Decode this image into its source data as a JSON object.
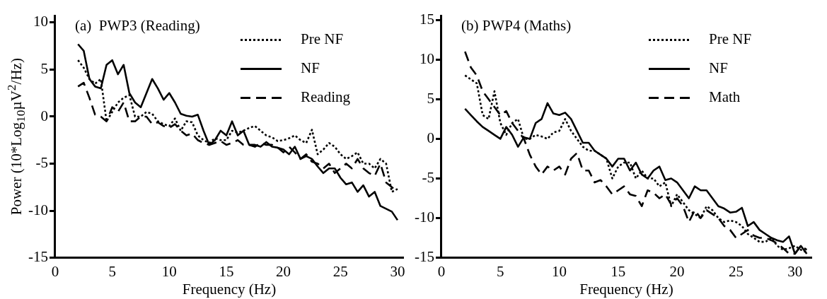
{
  "chart_data": [
    {
      "type": "line",
      "title": "(a)  PWP3 (Reading)",
      "xlabel": "Frequency (Hz)",
      "ylabel": "Power (10*Log$_{10}$µV$^{2}$/Hz)",
      "xlim": [
        0,
        30.5
      ],
      "xticks": [
        0,
        5,
        10,
        15,
        20,
        25,
        30
      ],
      "ylim": [
        -15,
        10.7
      ],
      "yticks": [
        -15,
        -10,
        -5,
        0,
        5,
        10
      ],
      "grid": false,
      "legend": "top right",
      "marker": "none",
      "x": [
        2,
        2.5,
        3,
        3.5,
        4,
        4.5,
        5,
        5.5,
        6,
        6.5,
        7,
        7.5,
        8,
        8.5,
        9,
        9.5,
        10,
        10.5,
        11,
        11.5,
        12,
        12.5,
        13,
        13.5,
        14,
        14.5,
        15,
        15.5,
        16,
        16.5,
        17,
        17.5,
        18,
        18.5,
        19,
        19.5,
        20,
        20.5,
        21,
        21.5,
        22,
        22.5,
        23,
        23.5,
        24,
        24.5,
        25,
        25.5,
        26,
        26.5,
        27,
        27.5,
        28,
        28.5,
        29,
        29.5,
        30
      ],
      "series": [
        {
          "name": "Pre NF",
          "color": "#000000",
          "line_style": "dotted",
          "values": [
            6,
            5.2,
            4,
            3.5,
            4,
            -0.5,
            0.5,
            1.5,
            2,
            2.3,
            0,
            0,
            0.5,
            0.3,
            -0.5,
            -0.8,
            -1,
            -0.2,
            -1.5,
            -0.5,
            -0.6,
            -2,
            -2.5,
            -2.8,
            -2.3,
            -2.5,
            -2.5,
            -1.5,
            -1.7,
            -1.5,
            -1.2,
            -1,
            -1.5,
            -2,
            -2.2,
            -2.6,
            -2.5,
            -2.3,
            -2,
            -2.5,
            -2.8,
            -1.4,
            -4,
            -3.5,
            -2.8,
            -3.2,
            -4,
            -4.5,
            -4.2,
            -3.8,
            -5,
            -5,
            -5.5,
            -4.5,
            -5,
            -8,
            -7.7
          ]
        },
        {
          "name": "NF",
          "color": "#000000",
          "line_style": "solid",
          "values": [
            7.7,
            7,
            4,
            3.2,
            3,
            5.5,
            6,
            4.5,
            5.5,
            2.5,
            1.5,
            1,
            2.5,
            4,
            3,
            1.8,
            2.5,
            1.5,
            0.3,
            0.1,
            0,
            0.2,
            -1.5,
            -3,
            -2.5,
            -1.5,
            -2,
            -0.5,
            -2,
            -1.5,
            -3,
            -3,
            -3.2,
            -2.7,
            -3.2,
            -3.3,
            -3.5,
            -4,
            -3.2,
            -4.5,
            -4.2,
            -4.5,
            -5.3,
            -6,
            -5.5,
            -5.5,
            -6.5,
            -7.2,
            -7,
            -8,
            -7.3,
            -8.5,
            -8,
            -9.5,
            -9.8,
            -10.1,
            -11
          ]
        },
        {
          "name": "Reading",
          "color": "#000000",
          "line_style": "dashed",
          "values": [
            3.2,
            3.6,
            2,
            0.2,
            0,
            -0.5,
            1,
            0.5,
            1.5,
            -0.5,
            -0.5,
            0,
            0,
            -0.8,
            -0.6,
            -1,
            -1.2,
            -0.8,
            -1.5,
            -2,
            -1.8,
            -2.5,
            -2.8,
            -3,
            -2.8,
            -2.6,
            -3,
            -2.8,
            -2.5,
            -3,
            -3,
            -3.2,
            -2.8,
            -3,
            -3,
            -3.3,
            -3.8,
            -3.2,
            -3.8,
            -4.5,
            -4,
            -4.8,
            -5,
            -5.5,
            -5,
            -6,
            -5.5,
            -5,
            -5.5,
            -4.5,
            -5.5,
            -6,
            -6.3,
            -5,
            -7,
            -7.5,
            -8
          ]
        }
      ]
    },
    {
      "type": "line",
      "title": "(b) PWP4 (Maths)",
      "xlabel": "Frequency (Hz)",
      "xlim": [
        0,
        31.4
      ],
      "xticks": [
        0,
        5,
        10,
        15,
        20,
        25,
        30
      ],
      "ylim": [
        -15,
        15.5
      ],
      "yticks": [
        -15,
        -10,
        -5,
        0,
        5,
        10,
        15
      ],
      "grid": false,
      "legend": "top right",
      "marker": "none",
      "x": [
        2,
        2.5,
        3,
        3.5,
        4,
        4.5,
        5,
        5.5,
        6,
        6.5,
        7,
        7.5,
        8,
        8.5,
        9,
        9.5,
        10,
        10.5,
        11,
        11.5,
        12,
        12.5,
        13,
        13.5,
        14,
        14.5,
        15,
        15.5,
        16,
        16.5,
        17,
        17.5,
        18,
        18.5,
        19,
        19.5,
        20,
        20.5,
        21,
        21.5,
        22,
        22.5,
        23,
        23.5,
        24,
        24.5,
        25,
        25.5,
        26,
        26.5,
        27,
        27.5,
        28,
        28.5,
        29,
        29.5,
        30,
        30.5,
        31
      ],
      "series": [
        {
          "name": "Pre NF",
          "color": "#000000",
          "line_style": "dotted",
          "values": [
            8,
            7.5,
            7,
            3,
            2.5,
            6,
            2,
            0.5,
            2,
            2.5,
            0,
            0,
            0.5,
            0.3,
            0,
            0.8,
            1,
            2.5,
            1,
            0,
            -1,
            -1.5,
            -1.5,
            -2,
            -2.5,
            -5,
            -3.5,
            -3,
            -3,
            -5,
            -4,
            -5,
            -5,
            -6,
            -5.5,
            -8.5,
            -7,
            -8,
            -9,
            -9.5,
            -10,
            -8.5,
            -9,
            -10,
            -10.5,
            -10.3,
            -10.5,
            -11,
            -12,
            -12.5,
            -13,
            -13,
            -12.5,
            -13.5,
            -14,
            -13.8,
            -13.5,
            -14,
            -14.3
          ]
        },
        {
          "name": "NF",
          "color": "#000000",
          "line_style": "solid",
          "values": [
            3.8,
            3,
            2.2,
            1.5,
            1,
            0.5,
            0,
            1.5,
            0.5,
            -1,
            0.2,
            0,
            2,
            2.5,
            4.5,
            3.2,
            3,
            3.3,
            2.5,
            1,
            -0.5,
            -0.5,
            -1.5,
            -2,
            -2.5,
            -3.5,
            -2.5,
            -2.5,
            -4,
            -3,
            -4.5,
            -5,
            -4,
            -3.5,
            -5.2,
            -5,
            -5.5,
            -6.5,
            -7.5,
            -6,
            -6.5,
            -6.5,
            -7.5,
            -8.5,
            -8.8,
            -9.3,
            -9.2,
            -8.7,
            -11,
            -10.5,
            -11.5,
            -12,
            -12.5,
            -12.8,
            -13,
            -12.3,
            -14.5,
            -13.5,
            -14.5
          ]
        },
        {
          "name": "Math",
          "color": "#000000",
          "line_style": "dashed",
          "values": [
            11,
            9,
            8,
            6,
            5,
            4,
            3,
            3.5,
            2,
            1,
            0,
            -2,
            -3.5,
            -4.5,
            -3.5,
            -4,
            -3.5,
            -4.5,
            -2.5,
            -1.8,
            -4,
            -4,
            -5.5,
            -5.2,
            -6,
            -7,
            -6.5,
            -6,
            -7,
            -7.2,
            -8.5,
            -6.5,
            -6.8,
            -7.5,
            -7,
            -8.3,
            -7.5,
            -8.5,
            -10.5,
            -9,
            -10,
            -9,
            -9.5,
            -10,
            -11,
            -11.5,
            -12.5,
            -12,
            -11.5,
            -12.2,
            -12.5,
            -12.5,
            -12.8,
            -13.2,
            -13.8,
            -14.5,
            -14.5,
            -13.5,
            -14
          ]
        }
      ]
    }
  ]
}
